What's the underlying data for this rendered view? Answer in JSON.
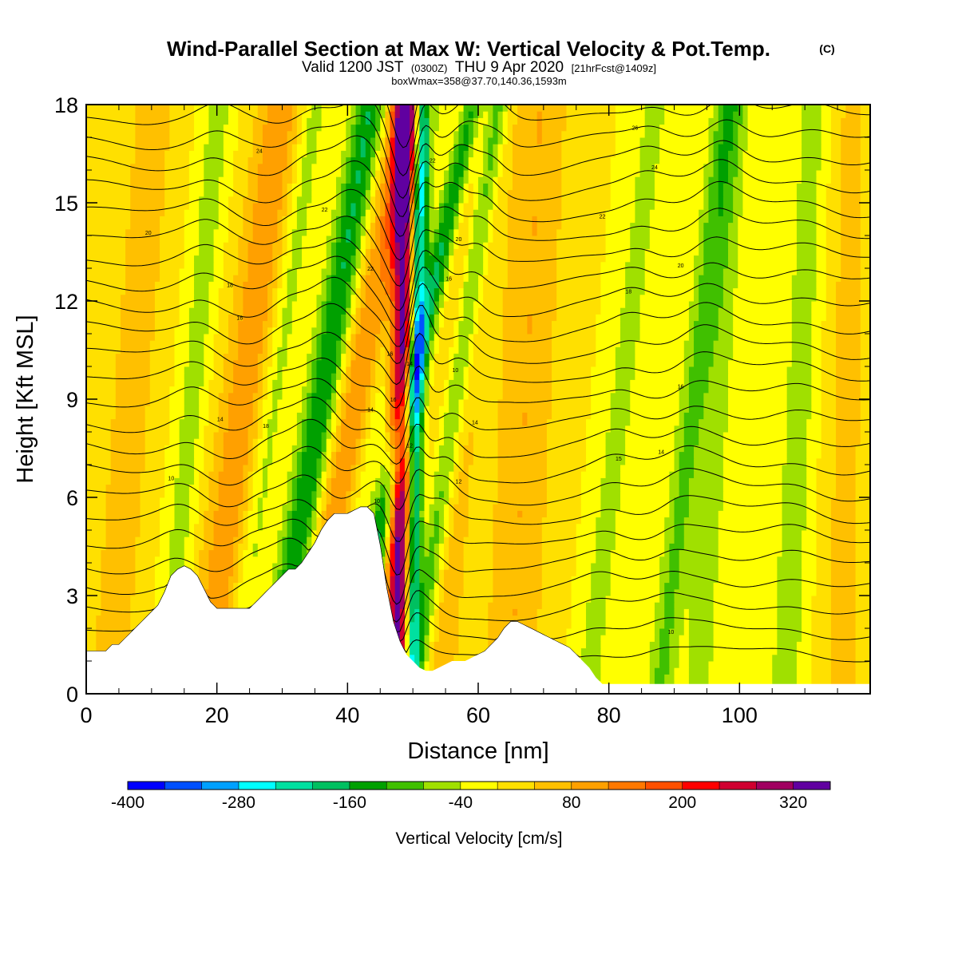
{
  "chart_data": {
    "type": "heatmap",
    "title": "Wind-Parallel Section at Max W: Vertical Velocity & Pot.Temp.",
    "title_mark": "(C)",
    "subtitle_prefix": "Valid 1200 JST",
    "subtitle_utc": "(0300Z)",
    "subtitle_date": "THU 9 Apr 2020",
    "subtitle_fcst": "[21hrFcst@1409z]",
    "subtitle2": "boxWmax=358@37.70,140.36,1593m",
    "xlabel": "Distance [nm]",
    "ylabel": "Height [Kft MSL]",
    "xlim": [
      0,
      120
    ],
    "ylim": [
      0,
      18
    ],
    "x_ticks": [
      "0",
      "20",
      "40",
      "60",
      "80",
      "100"
    ],
    "y_ticks": [
      "0",
      "3",
      "6",
      "9",
      "12",
      "15",
      "18"
    ],
    "colorbar": {
      "label": "Vertical Velocity [cm/s]",
      "ticks": [
        "-400",
        "-280",
        "-160",
        "-40",
        "80",
        "200",
        "320"
      ],
      "min": -400,
      "step": 40,
      "colors": [
        "#0000ff",
        "#0050ff",
        "#00a0ff",
        "#00ffff",
        "#00e0a0",
        "#00c060",
        "#00a000",
        "#40c000",
        "#a0e000",
        "#ffff00",
        "#ffe000",
        "#ffc000",
        "#ffa000",
        "#ff7800",
        "#ff5000",
        "#ff0000",
        "#d00030",
        "#a00060",
        "#6000a0"
      ]
    },
    "terrain_kft": {
      "x": [
        0,
        3,
        4,
        5,
        6,
        7,
        8,
        9,
        10,
        11,
        12,
        13,
        14,
        15,
        16,
        17,
        18,
        19,
        20,
        21,
        22,
        23,
        24,
        25,
        26,
        27,
        28,
        29,
        30,
        31,
        32,
        33,
        34,
        35,
        36,
        37,
        38,
        39,
        40,
        41,
        42,
        43,
        44,
        45,
        46,
        47,
        48,
        49,
        50,
        51,
        52,
        53,
        54,
        55,
        56,
        57,
        58,
        59,
        60,
        61,
        62,
        63,
        64,
        65,
        66,
        67,
        68,
        69,
        70,
        71,
        72,
        73,
        74,
        75,
        76,
        77,
        78,
        79,
        80,
        85,
        90,
        95,
        100,
        105,
        110,
        116,
        120
      ],
      "y": [
        1.3,
        1.3,
        1.5,
        1.5,
        1.7,
        1.9,
        2.1,
        2.3,
        2.5,
        2.7,
        3.1,
        3.6,
        3.8,
        3.9,
        3.8,
        3.6,
        3.2,
        2.8,
        2.6,
        2.6,
        2.6,
        2.6,
        2.6,
        2.6,
        2.8,
        3.0,
        3.2,
        3.4,
        3.6,
        3.8,
        3.8,
        4.0,
        4.3,
        4.6,
        5.0,
        5.3,
        5.5,
        5.5,
        5.5,
        5.6,
        5.7,
        5.7,
        5.5,
        4.5,
        3.2,
        2.2,
        1.6,
        1.2,
        1.0,
        0.8,
        0.7,
        0.7,
        0.8,
        0.9,
        1.0,
        1.0,
        1.0,
        1.1,
        1.2,
        1.3,
        1.5,
        1.7,
        2.0,
        2.2,
        2.2,
        2.1,
        2.0,
        1.9,
        1.8,
        1.7,
        1.6,
        1.5,
        1.4,
        1.2,
        1.0,
        0.8,
        0.5,
        0.3,
        0.3,
        0.3,
        0.3,
        0.3,
        0.3,
        0.3,
        0.3,
        0.3,
        0.3
      ]
    },
    "vertical_velocity_bands": [
      {
        "x0": 5,
        "tilt": 0.12,
        "width": 4,
        "w": 60
      },
      {
        "x0": 14,
        "tilt": 0.14,
        "width": 2.2,
        "w": -60
      },
      {
        "x0": 21,
        "tilt": 0.2,
        "width": 3.8,
        "w": 110
      },
      {
        "x0": 25,
        "tilt": 0.22,
        "width": 2.2,
        "w": -70
      },
      {
        "x0": 32,
        "tilt": 0.26,
        "width": 2.6,
        "w": -170
      },
      {
        "x0": 37,
        "tilt": 0.27,
        "width": 3.4,
        "w": 120
      },
      {
        "x0": 40,
        "tilt": 0.3,
        "width": 2.0,
        "w": -60
      },
      {
        "x0": 44,
        "tilt": 0.34,
        "width": 1.8,
        "w": -180
      },
      {
        "x0": 48,
        "tilt": 0.02,
        "width": 1.8,
        "w": 360
      },
      {
        "x0": 50,
        "tilt": 0.03,
        "width": 1.2,
        "w": -270
      },
      {
        "x0": 53,
        "tilt": 0.22,
        "width": 1.8,
        "w": -140
      },
      {
        "x0": 55,
        "tilt": 0.12,
        "width": 3.5,
        "w": 70
      },
      {
        "x0": 66,
        "tilt": 0.08,
        "width": 4.5,
        "w": 80
      },
      {
        "x0": 79,
        "tilt": 0.18,
        "width": 2.2,
        "w": -60
      },
      {
        "x0": 90,
        "tilt": 0.18,
        "width": 2.2,
        "w": -90
      },
      {
        "x0": 95,
        "tilt": 0.1,
        "width": 2.5,
        "w": -60
      },
      {
        "x0": 108,
        "tilt": 0.08,
        "width": 3.0,
        "w": -60
      },
      {
        "x0": 116,
        "tilt": 0.02,
        "width": 4.0,
        "w": 50
      }
    ],
    "theta_contour_levels": [
      6,
      7,
      8,
      9,
      10,
      11,
      12,
      13,
      14,
      15,
      16,
      17,
      18,
      19,
      20,
      21,
      22,
      23,
      24,
      25,
      26,
      27,
      28,
      29,
      30
    ],
    "contour_labels": [
      {
        "x": 26.5,
        "y": 16.6,
        "text": "24"
      },
      {
        "x": 36.5,
        "y": 14.8,
        "text": "22"
      },
      {
        "x": 9.5,
        "y": 14.1,
        "text": "20"
      },
      {
        "x": 43.5,
        "y": 13.0,
        "text": "22"
      },
      {
        "x": 22,
        "y": 12.5,
        "text": "18"
      },
      {
        "x": 23.5,
        "y": 11.5,
        "text": "16"
      },
      {
        "x": 20.5,
        "y": 8.4,
        "text": "14"
      },
      {
        "x": 27.5,
        "y": 8.2,
        "text": "18"
      },
      {
        "x": 13,
        "y": 6.6,
        "text": "10"
      },
      {
        "x": 53,
        "y": 16.3,
        "text": "22"
      },
      {
        "x": 57,
        "y": 13.9,
        "text": "20"
      },
      {
        "x": 55.5,
        "y": 12.7,
        "text": "16"
      },
      {
        "x": 46.5,
        "y": 10.4,
        "text": "16"
      },
      {
        "x": 49.5,
        "y": 10.1,
        "text": "14"
      },
      {
        "x": 47,
        "y": 9.0,
        "text": "16"
      },
      {
        "x": 43.5,
        "y": 8.7,
        "text": "14"
      },
      {
        "x": 49.5,
        "y": 7.6,
        "text": "12"
      },
      {
        "x": 44.5,
        "y": 5.9,
        "text": "10"
      },
      {
        "x": 56.5,
        "y": 9.9,
        "text": "10"
      },
      {
        "x": 59.5,
        "y": 8.3,
        "text": "14"
      },
      {
        "x": 57,
        "y": 6.5,
        "text": "12"
      },
      {
        "x": 84,
        "y": 17.3,
        "text": "26"
      },
      {
        "x": 87,
        "y": 16.1,
        "text": "24"
      },
      {
        "x": 79,
        "y": 14.6,
        "text": "22"
      },
      {
        "x": 91,
        "y": 13.1,
        "text": "20"
      },
      {
        "x": 83,
        "y": 12.3,
        "text": "18"
      },
      {
        "x": 91,
        "y": 9.4,
        "text": "16"
      },
      {
        "x": 81.5,
        "y": 7.2,
        "text": "15"
      },
      {
        "x": 88,
        "y": 7.4,
        "text": "14"
      },
      {
        "x": 89.5,
        "y": 1.9,
        "text": "10"
      }
    ]
  }
}
